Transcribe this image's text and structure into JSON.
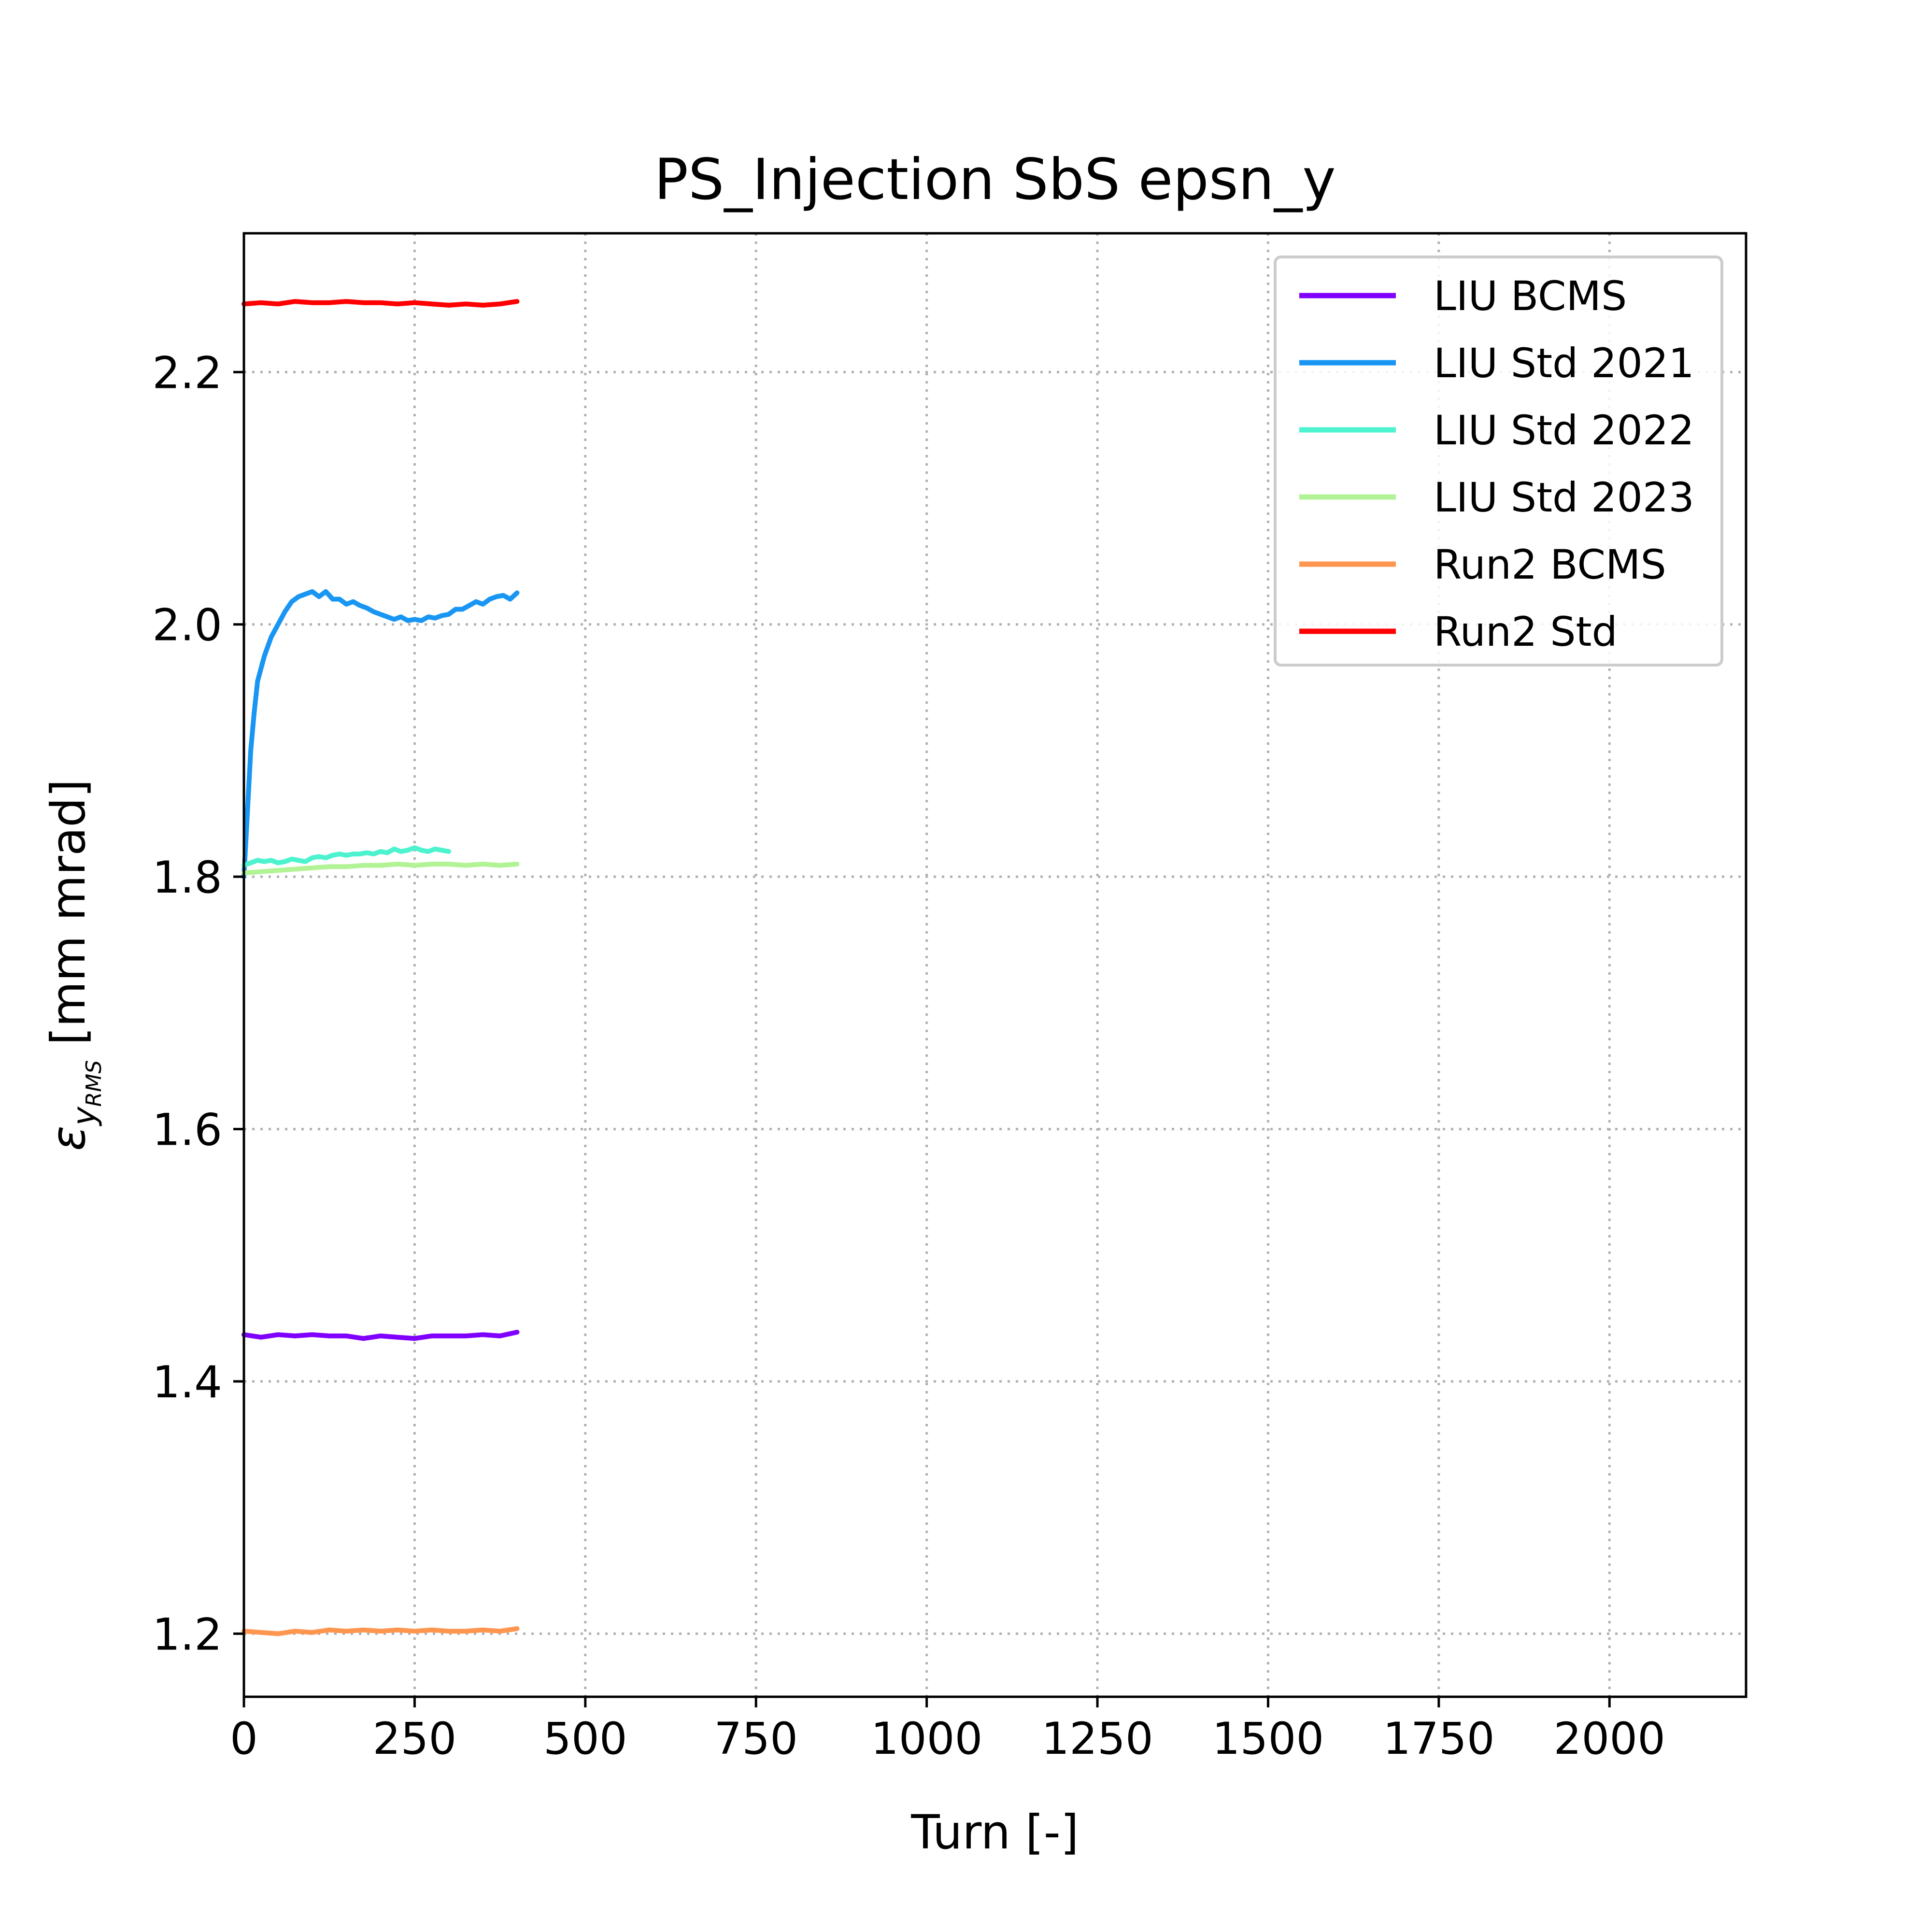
{
  "chart_data": {
    "type": "line",
    "title": "PS_Injection SbS epsn_y",
    "xlabel": "Turn [-]",
    "ylabel": {
      "symbol": "ε",
      "subscript": "y",
      "subsubscript": "RMS",
      "unit": " [mm mrad]"
    },
    "xlim": [
      0,
      2200
    ],
    "ylim": [
      1.15,
      2.31
    ],
    "xticks": [
      0,
      250,
      500,
      750,
      1000,
      1250,
      1500,
      1750,
      2000
    ],
    "xtick_labels": [
      "0",
      "250",
      "500",
      "750",
      "1000",
      "1250",
      "1500",
      "1750",
      "2000"
    ],
    "yticks": [
      1.2,
      1.4,
      1.6,
      1.8,
      2.0,
      2.2
    ],
    "ytick_labels": [
      "1.2",
      "1.4",
      "1.6",
      "1.8",
      "2.0",
      "2.2"
    ],
    "grid": true,
    "legend_position": "top-right",
    "series": [
      {
        "name": "LIU BCMS",
        "color": "#8000ff",
        "x": [
          0,
          25,
          50,
          75,
          100,
          125,
          150,
          175,
          200,
          225,
          250,
          275,
          300,
          325,
          350,
          375,
          400
        ],
        "y": [
          1.437,
          1.435,
          1.437,
          1.436,
          1.437,
          1.436,
          1.436,
          1.434,
          1.436,
          1.435,
          1.434,
          1.436,
          1.436,
          1.436,
          1.437,
          1.436,
          1.439
        ]
      },
      {
        "name": "LIU Std 2021",
        "color": "#1996f3",
        "x": [
          0,
          5,
          10,
          15,
          20,
          30,
          40,
          50,
          60,
          70,
          80,
          90,
          100,
          110,
          120,
          130,
          140,
          150,
          160,
          170,
          180,
          190,
          200,
          210,
          220,
          230,
          240,
          250,
          260,
          270,
          280,
          290,
          300,
          310,
          320,
          330,
          340,
          350,
          360,
          370,
          380,
          390,
          400
        ],
        "y": [
          1.8,
          1.85,
          1.9,
          1.93,
          1.955,
          1.975,
          1.99,
          2.0,
          2.01,
          2.018,
          2.022,
          2.024,
          2.026,
          2.022,
          2.026,
          2.02,
          2.02,
          2.016,
          2.018,
          2.015,
          2.013,
          2.01,
          2.008,
          2.006,
          2.004,
          2.006,
          2.003,
          2.004,
          2.003,
          2.006,
          2.005,
          2.007,
          2.008,
          2.012,
          2.012,
          2.015,
          2.018,
          2.016,
          2.02,
          2.022,
          2.023,
          2.02,
          2.025
        ]
      },
      {
        "name": "LIU Std 2022",
        "color": "#4df3ce",
        "x": [
          0,
          10,
          20,
          30,
          40,
          50,
          60,
          70,
          80,
          90,
          100,
          110,
          120,
          130,
          140,
          150,
          160,
          170,
          180,
          190,
          200,
          210,
          220,
          230,
          240,
          250,
          260,
          270,
          280,
          290,
          300
        ],
        "y": [
          1.809,
          1.811,
          1.813,
          1.812,
          1.813,
          1.811,
          1.812,
          1.814,
          1.813,
          1.812,
          1.815,
          1.816,
          1.815,
          1.817,
          1.818,
          1.817,
          1.818,
          1.818,
          1.819,
          1.818,
          1.82,
          1.819,
          1.822,
          1.82,
          1.821,
          1.823,
          1.821,
          1.82,
          1.822,
          1.821,
          1.82
        ]
      },
      {
        "name": "LIU Std 2023",
        "color": "#b2f396",
        "x": [
          0,
          25,
          50,
          75,
          100,
          125,
          150,
          175,
          200,
          225,
          250,
          275,
          300,
          325,
          350,
          375,
          400
        ],
        "y": [
          1.803,
          1.804,
          1.805,
          1.806,
          1.807,
          1.808,
          1.808,
          1.809,
          1.809,
          1.81,
          1.809,
          1.81,
          1.81,
          1.809,
          1.81,
          1.809,
          1.81
        ]
      },
      {
        "name": "Run2 BCMS",
        "color": "#ff964f",
        "x": [
          0,
          25,
          50,
          75,
          100,
          125,
          150,
          175,
          200,
          225,
          250,
          275,
          300,
          325,
          350,
          375,
          400
        ],
        "y": [
          1.202,
          1.201,
          1.2,
          1.202,
          1.201,
          1.203,
          1.202,
          1.203,
          1.202,
          1.203,
          1.202,
          1.203,
          1.202,
          1.202,
          1.203,
          1.202,
          1.204
        ]
      },
      {
        "name": "Run2 Std",
        "color": "#ff0000",
        "x": [
          0,
          25,
          50,
          75,
          100,
          125,
          150,
          175,
          200,
          225,
          250,
          275,
          300,
          325,
          350,
          375,
          400
        ],
        "y": [
          2.254,
          2.255,
          2.254,
          2.256,
          2.255,
          2.255,
          2.256,
          2.255,
          2.255,
          2.254,
          2.255,
          2.254,
          2.253,
          2.254,
          2.253,
          2.254,
          2.256
        ]
      }
    ]
  }
}
